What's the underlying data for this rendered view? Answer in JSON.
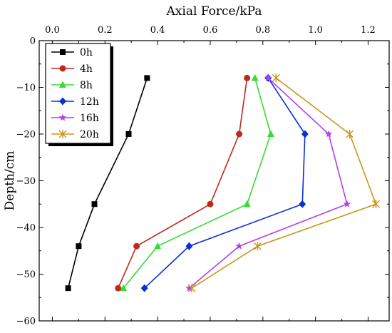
{
  "chart_data": {
    "type": "line",
    "title": "",
    "xlabel": "Axial Force/kPa",
    "ylabel": "Depth/cm",
    "x_axis_position": "top",
    "xlim": [
      -0.05,
      1.28
    ],
    "ylim": [
      -60,
      0
    ],
    "x_ticks": [
      0.0,
      0.2,
      0.4,
      0.6,
      0.8,
      1.0,
      1.2
    ],
    "x_tick_labels": [
      "0.0",
      "0.2",
      "0.4",
      "0.6",
      "0.8",
      "1.0",
      "1.2"
    ],
    "y_ticks": [
      0,
      -10,
      -20,
      -30,
      -40,
      -50,
      -60
    ],
    "y_tick_labels": [
      "0",
      "−10",
      "−20",
      "−30",
      "−40",
      "−50",
      "−60"
    ],
    "grid": false,
    "legend_position": "top-left",
    "series": [
      {
        "name": "0h",
        "color": "#000000",
        "marker": "square",
        "x": [
          0.36,
          0.29,
          0.16,
          0.1,
          0.06
        ],
        "y": [
          -8,
          -20,
          -35,
          -44,
          -53
        ]
      },
      {
        "name": "4h",
        "color": "#c0291c",
        "marker": "circle",
        "x": [
          0.74,
          0.71,
          0.6,
          0.32,
          0.25
        ],
        "y": [
          -8,
          -20,
          -35,
          -44,
          -53
        ]
      },
      {
        "name": "8h",
        "color": "#33dd33",
        "marker": "triangle",
        "x": [
          0.77,
          0.83,
          0.74,
          0.4,
          0.27
        ],
        "y": [
          -8,
          -20,
          -35,
          -44,
          -53
        ]
      },
      {
        "name": "12h",
        "color": "#0a2fd6",
        "marker": "diamond",
        "x": [
          0.82,
          0.96,
          0.95,
          0.52,
          0.35
        ],
        "y": [
          -8,
          -20,
          -35,
          -44,
          -53
        ]
      },
      {
        "name": "16h",
        "color": "#b040f0",
        "marker": "star",
        "x": [
          0.82,
          1.05,
          1.12,
          0.71,
          0.52
        ],
        "y": [
          -8,
          -20,
          -35,
          -44,
          -53
        ]
      },
      {
        "name": "20h",
        "color": "#c8961a",
        "marker": "asterisk",
        "x": [
          0.85,
          1.13,
          1.23,
          0.78,
          0.53
        ],
        "y": [
          -8,
          -20,
          -35,
          -44,
          -53
        ]
      }
    ]
  }
}
